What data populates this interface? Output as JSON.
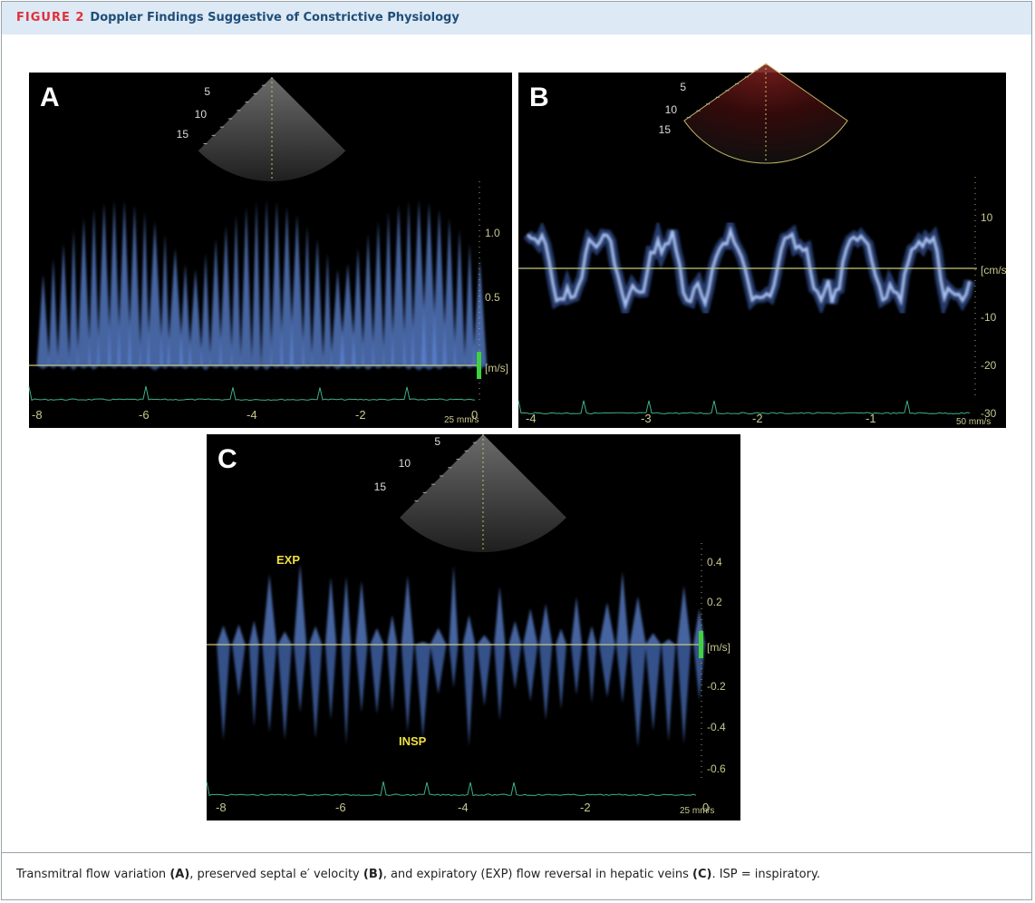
{
  "header": {
    "label": "FIGURE 2",
    "title": "Doppler Findings Suggestive of Constrictive Physiology"
  },
  "panels": [
    {
      "label": "A",
      "depth_labels": [
        "5",
        "10",
        "15"
      ],
      "y_ticks": [
        "1.0",
        "0.5"
      ],
      "unit": "[m/s]",
      "x_ticks": [
        "-8",
        "-6",
        "-4",
        "-2",
        "0"
      ],
      "speed": "25 mm/s"
    },
    {
      "label": "B",
      "depth_labels": [
        "5",
        "10",
        "15"
      ],
      "y_ticks": [
        "10",
        "-10",
        "-20",
        "-30"
      ],
      "unit": "[cm/s",
      "x_ticks": [
        "-4",
        "-3",
        "-2",
        "-1"
      ],
      "speed": "50 mm/s"
    },
    {
      "label": "C",
      "depth_labels": [
        "5",
        "10",
        "15"
      ],
      "y_ticks": [
        "0.4",
        "0.2",
        "-0.2",
        "-0.4",
        "-0.6"
      ],
      "unit": "[m/s]",
      "x_ticks": [
        "-8",
        "-6",
        "-4",
        "-2",
        "0"
      ],
      "speed": "25 mm/s",
      "annotations": [
        "EXP",
        "INSP"
      ]
    }
  ],
  "caption": [
    "Transmitral flow variation ",
    "(A)",
    ", preserved septal e′ velocity ",
    "(B)",
    ", and expiratory (EXP) flow reversal in hepatic veins ",
    "(C)",
    ". ISP = inspiratory."
  ]
}
